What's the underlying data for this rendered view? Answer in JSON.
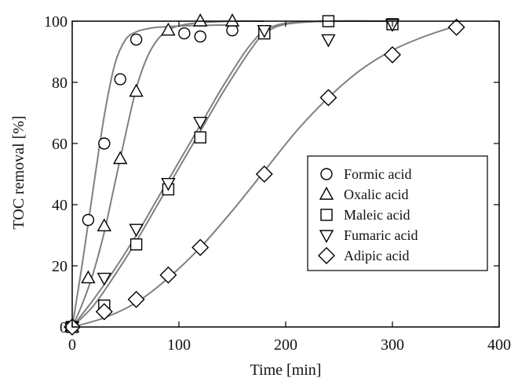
{
  "chart_data": {
    "type": "scatter",
    "xlabel": "Time [min]",
    "ylabel": "TOC removal [%]",
    "xlim": [
      0,
      400
    ],
    "ylim": [
      0,
      100
    ],
    "xticks": [
      "0",
      "100",
      "200",
      "300",
      "400"
    ],
    "yticks": [
      "0",
      "20",
      "40",
      "60",
      "80",
      "100"
    ],
    "grid": false,
    "legend_position": "center-right",
    "curve_color": "#808080",
    "marker_color": "#000000",
    "series": [
      {
        "name": "Formic acid",
        "marker": "circle",
        "x": [
          0,
          15,
          30,
          45,
          60,
          105,
          120,
          150
        ],
        "y": [
          0,
          35,
          60,
          81,
          94,
          96,
          95,
          97
        ],
        "fit_x": [
          0,
          10,
          20,
          30,
          40,
          50,
          60,
          70,
          80,
          100,
          120,
          150
        ],
        "fit_y": [
          0,
          22,
          46,
          69,
          86,
          94,
          96.5,
          97.5,
          98,
          98.4,
          98.6,
          98.8
        ]
      },
      {
        "name": "Oxalic acid",
        "marker": "triangle-up",
        "x": [
          0,
          15,
          30,
          45,
          60,
          90,
          120,
          150
        ],
        "y": [
          0,
          16,
          33,
          55,
          77,
          97,
          100,
          100
        ],
        "fit_x": [
          0,
          10,
          20,
          30,
          40,
          50,
          60,
          70,
          80,
          90,
          100,
          120,
          150,
          180
        ],
        "fit_y": [
          0,
          8,
          18,
          31,
          47,
          63,
          78,
          88,
          94,
          97,
          98.5,
          99.5,
          100,
          100
        ]
      },
      {
        "name": "Maleic acid",
        "marker": "square",
        "x": [
          0,
          30,
          60,
          90,
          120,
          180,
          240,
          300
        ],
        "y": [
          0,
          7,
          27,
          45,
          62,
          96,
          100,
          99
        ],
        "fit_x": [
          0,
          20,
          40,
          60,
          80,
          100,
          120,
          140,
          160,
          170,
          180,
          200,
          240,
          300
        ],
        "fit_y": [
          0,
          7,
          17,
          28,
          40,
          52,
          64,
          76,
          87,
          92,
          96,
          99,
          100,
          100
        ]
      },
      {
        "name": "Fumaric acid",
        "marker": "triangle-down",
        "x": [
          0,
          30,
          60,
          90,
          120,
          180,
          240,
          300
        ],
        "y": [
          0,
          16,
          32,
          47,
          67,
          97,
          94,
          99
        ],
        "fit_x": [
          0,
          20,
          40,
          60,
          80,
          100,
          120,
          140,
          160,
          170,
          180,
          200,
          240,
          300
        ],
        "fit_y": [
          0,
          9,
          19,
          30,
          42,
          54,
          66,
          78,
          89,
          93.5,
          97,
          99.3,
          100,
          100
        ]
      },
      {
        "name": "Adipic acid",
        "marker": "diamond",
        "x": [
          0,
          30,
          60,
          90,
          120,
          180,
          240,
          300,
          360
        ],
        "y": [
          0,
          5,
          9,
          17,
          26,
          50,
          75,
          89,
          98
        ],
        "fit_x": [
          0,
          30,
          60,
          90,
          120,
          150,
          180,
          210,
          240,
          270,
          300,
          330,
          360
        ],
        "fit_y": [
          0,
          3,
          8,
          16,
          26,
          38,
          51,
          64,
          75,
          84,
          90.5,
          95,
          98.5
        ]
      }
    ]
  }
}
